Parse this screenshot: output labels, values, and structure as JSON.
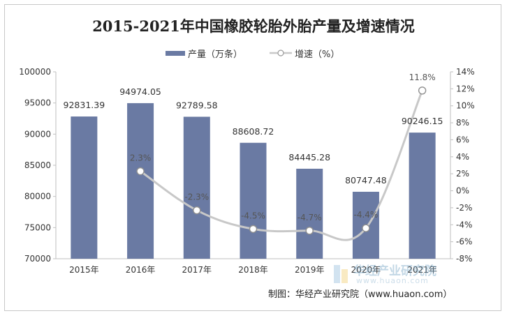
{
  "chart_data": {
    "type": "bar+line",
    "title": "2015-2021年中国橡胶轮胎外胎产量及增速情况",
    "categories": [
      "2015年",
      "2016年",
      "2017年",
      "2018年",
      "2019年",
      "2020年",
      "2021年"
    ],
    "series": [
      {
        "name": "产量（万条）",
        "type": "bar",
        "axis": "left",
        "color": "#6a7aa3",
        "values": [
          92831.39,
          94974.05,
          92789.58,
          88608.72,
          84445.28,
          80747.48,
          90246.15
        ],
        "labels": [
          "92831.39",
          "94974.05",
          "92789.58",
          "88608.72",
          "84445.28",
          "80747.48",
          "90246.15"
        ]
      },
      {
        "name": "增速（%）",
        "type": "line",
        "axis": "right",
        "color": "#c8c8c8",
        "values": [
          null,
          2.3,
          -2.3,
          -4.5,
          -4.7,
          -4.4,
          11.8
        ],
        "labels": [
          "",
          "2.3%",
          "-2.3%",
          "-4.5%",
          "-4.7%",
          "-4.4%",
          "11.8%"
        ]
      }
    ],
    "y_left": {
      "min": 70000,
      "max": 100000,
      "ticks": [
        "70000",
        "75000",
        "80000",
        "85000",
        "90000",
        "95000",
        "100000"
      ]
    },
    "y_right": {
      "min": -8,
      "max": 14,
      "ticks": [
        "-8%",
        "-6%",
        "-4%",
        "-2%",
        "0%",
        "2%",
        "4%",
        "6%",
        "8%",
        "10%",
        "12%",
        "14%"
      ]
    },
    "grid": false,
    "legend_position": "top-center"
  },
  "source_text": "制图：华经产业研究院（www.huaon.com）",
  "watermark": {
    "text": "华经产业研究院",
    "url": "www.huaon.com"
  }
}
